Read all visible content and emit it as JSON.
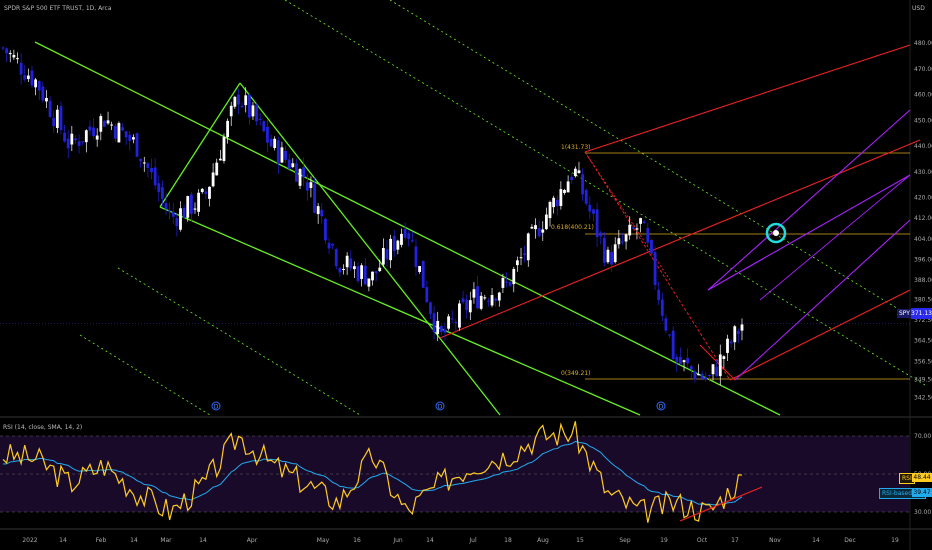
{
  "header": {
    "symbol_title": "SPDR S&P 500 ETF TRUST, 1D, Arca",
    "currency": "USD"
  },
  "price_axis": {
    "ticks": [
      "480.00",
      "470.00",
      "460.00",
      "450.00",
      "440.00",
      "430.00",
      "420.00",
      "412.00",
      "404.00",
      "396.00",
      "388.00",
      "380.50",
      "372.50",
      "364.50",
      "356.50",
      "349.50",
      "342.50"
    ]
  },
  "rsi_axis": {
    "ticks": [
      "70.00",
      "50.00",
      "30.00"
    ],
    "label": "RSI (14, close, SMA, 14, 2)"
  },
  "time_axis": {
    "ticks": [
      "2022",
      "14",
      "Feb",
      "14",
      "Mar",
      "14",
      "Apr",
      "May",
      "16",
      "Jun",
      "14",
      "Jul",
      "18",
      "Aug",
      "15",
      "Sep",
      "19",
      "Oct",
      "17",
      "Nov",
      "14",
      "Dec",
      "19"
    ]
  },
  "badges": {
    "spy_label": "SPY",
    "spy_price": "371.13",
    "rsi_label": "RSI",
    "rsi_value": "48.44",
    "rsi_ma_label": "RSI-based MA",
    "rsi_ma_value": "39.47",
    "event_icon": "D"
  },
  "fib_labels": {
    "top": "1(431.73)",
    "mid": "0.618(400.21)",
    "bottom": "0(349.21)"
  },
  "colors": {
    "up": "#ffffff",
    "down": "#2222dd",
    "channel": "#66ee22",
    "pitchfork": "#ee2222",
    "pitchfork_inner": "#aa22ff",
    "fib": "#ddaa22",
    "rsi": "#ffcc22",
    "rsi_ma": "#22aaee",
    "rsi_band": "#1a0a2a",
    "target_circle": "#22dddd"
  },
  "chart_data": {
    "type": "candlestick",
    "title": "SPDR S&P 500 ETF TRUST, 1D, Arca",
    "y_unit": "USD",
    "ylim": [
      340,
      485
    ],
    "x_range": [
      "2022-01",
      "2022-12-19"
    ],
    "current_price": 371.13,
    "close_path": [
      {
        "date": "2022-01-03",
        "close": 478
      },
      {
        "date": "2022-01-14",
        "close": 465
      },
      {
        "date": "2022-01-24",
        "close": 440
      },
      {
        "date": "2022-02-01",
        "close": 451
      },
      {
        "date": "2022-02-14",
        "close": 440
      },
      {
        "date": "2022-02-24",
        "close": 412
      },
      {
        "date": "2022-03-14",
        "close": 420
      },
      {
        "date": "2022-03-29",
        "close": 460
      },
      {
        "date": "2022-04-14",
        "close": 440
      },
      {
        "date": "2022-04-28",
        "close": 428
      },
      {
        "date": "2022-05-12",
        "close": 395
      },
      {
        "date": "2022-05-20",
        "close": 389
      },
      {
        "date": "2022-06-02",
        "close": 410
      },
      {
        "date": "2022-06-16",
        "close": 365
      },
      {
        "date": "2022-07-01",
        "close": 381
      },
      {
        "date": "2022-07-18",
        "close": 386
      },
      {
        "date": "2022-08-01",
        "close": 410
      },
      {
        "date": "2022-08-16",
        "close": 431
      },
      {
        "date": "2022-09-01",
        "close": 396
      },
      {
        "date": "2022-09-12",
        "close": 410
      },
      {
        "date": "2022-09-30",
        "close": 357
      },
      {
        "date": "2022-10-13",
        "close": 349
      },
      {
        "date": "2022-10-21",
        "close": 371
      }
    ],
    "rsi": {
      "name": "RSI (14, close, SMA, 14, 2)",
      "levels": [
        70,
        50,
        30
      ],
      "last": 48.44,
      "ma_last": 39.47
    },
    "fibonacci": [
      {
        "level": "1",
        "price": 431.73
      },
      {
        "level": "0.618",
        "price": 400.21
      },
      {
        "level": "0",
        "price": 349.21
      }
    ]
  }
}
